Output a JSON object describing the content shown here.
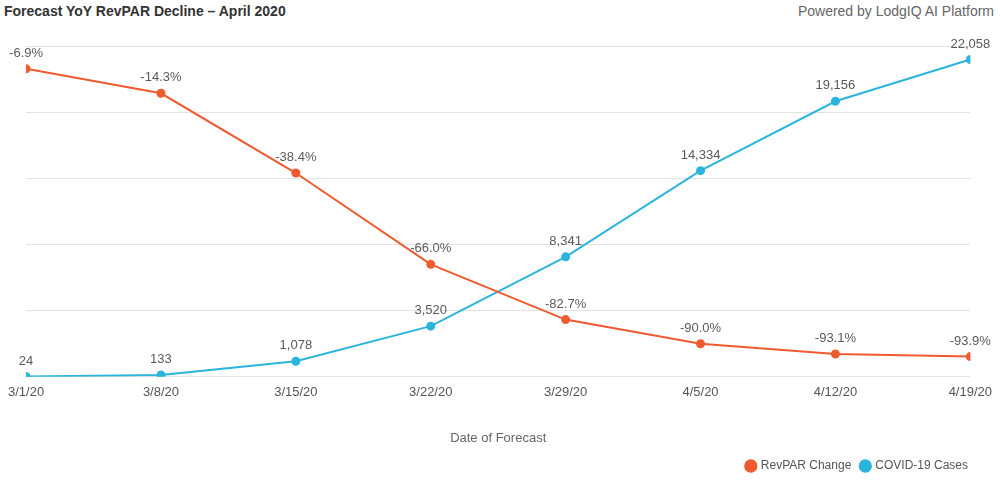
{
  "chart_data": {
    "type": "line",
    "title": "Forecast YoY RevPAR Decline – April 2020",
    "subtitle": "Powered by LodgIQ AI Platform",
    "x_label": "Date of Forecast",
    "categories": [
      "3/1/20",
      "3/8/20",
      "3/15/20",
      "3/22/20",
      "3/29/20",
      "4/5/20",
      "4/12/20",
      "4/19/20"
    ],
    "series": [
      {
        "name": "RevPAR Change",
        "color": "#ef5a2f",
        "marker": "circle",
        "line_style": "solid",
        "values": [
          -6.9,
          -14.3,
          -38.4,
          -66.0,
          -82.7,
          -90.0,
          -93.1,
          -93.9
        ],
        "value_labels": [
          "-6.9%",
          "-14.3%",
          "-38.4%",
          "-66.0%",
          "-82.7%",
          "-90.0%",
          "-93.1%",
          "-93.9%"
        ]
      },
      {
        "name": "COVID-19 Cases",
        "color": "#2bb5dc",
        "marker": "circle",
        "line_style": "solid",
        "axis": "y2",
        "values": [
          24,
          133,
          1078,
          3520,
          8341,
          14334,
          19156,
          22058
        ],
        "value_labels": [
          "24",
          "133",
          "1,078",
          "3,520",
          "8,341",
          "14,334",
          "19,156",
          "22,058"
        ]
      }
    ],
    "ylim": [
      -100,
      0
    ],
    "yticks": [
      -100,
      -80,
      -60,
      -40,
      -20,
      0
    ],
    "y2lim": [
      0,
      23000
    ],
    "y2ticks": [
      0,
      4600,
      9200,
      13800,
      18400,
      23000
    ],
    "grid": true,
    "legend": "bottom-right",
    "data_labels": true,
    "tick_labels": "x"
  }
}
